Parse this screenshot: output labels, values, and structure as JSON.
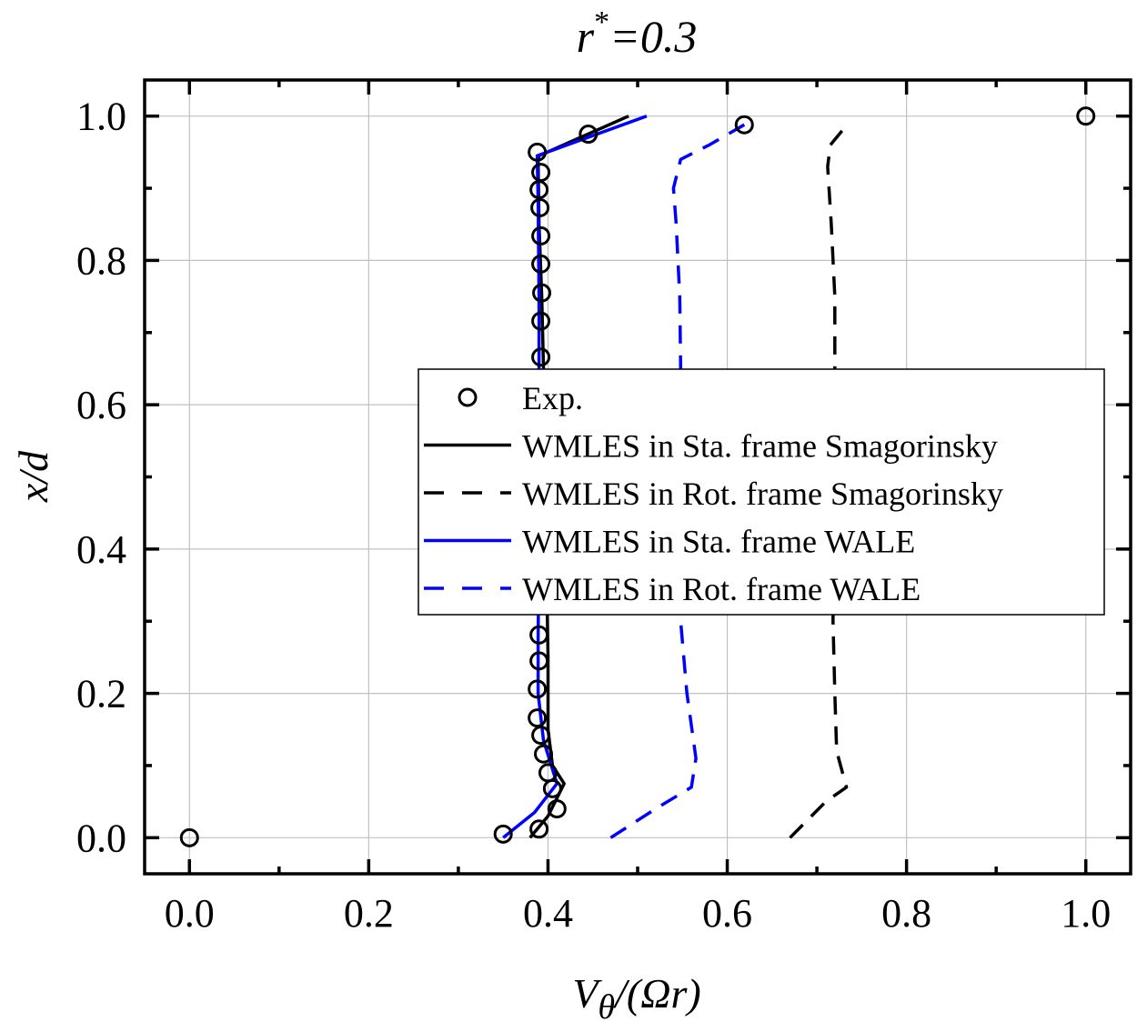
{
  "chart_data": {
    "type": "line",
    "title": "r*=0.3",
    "title_parts": {
      "base": "r",
      "sup": "*",
      "rest": "=0.3"
    },
    "xlabel": "Vθ/(Ωr)",
    "xlabel_parts": {
      "main": "V",
      "sub": "θ",
      "rest": "/(Ωr)"
    },
    "ylabel": "x/d",
    "xlim": [
      -0.05,
      1.05
    ],
    "ylim": [
      -0.05,
      1.05
    ],
    "xticks": [
      0.0,
      0.2,
      0.4,
      0.6,
      0.8,
      1.0
    ],
    "xtick_labels": [
      "0.0",
      "0.2",
      "0.4",
      "0.6",
      "0.8",
      "1.0"
    ],
    "yticks": [
      0.0,
      0.2,
      0.4,
      0.6,
      0.8,
      1.0
    ],
    "ytick_labels": [
      "0.0",
      "0.2",
      "0.4",
      "0.6",
      "0.8",
      "1.0"
    ],
    "minor_xticks": [
      0.1,
      0.3,
      0.5,
      0.7,
      0.9
    ],
    "minor_yticks": [
      0.1,
      0.3,
      0.5,
      0.7,
      0.9
    ],
    "grid": true,
    "legend_placement": "center-right",
    "series": [
      {
        "name": "Exp.",
        "style": "marker",
        "color": "#000000",
        "x": [
          0.0,
          0.35,
          0.39,
          0.41,
          0.405,
          0.4,
          0.395,
          0.392,
          0.388,
          0.388,
          0.39,
          0.39,
          0.392,
          0.392,
          0.393,
          0.392,
          0.392,
          0.391,
          0.39,
          0.392,
          0.388,
          0.445,
          0.619,
          1.0
        ],
        "y": [
          0.0,
          0.005,
          0.012,
          0.04,
          0.068,
          0.09,
          0.116,
          0.142,
          0.166,
          0.206,
          0.245,
          0.281,
          0.666,
          0.716,
          0.755,
          0.795,
          0.834,
          0.873,
          0.898,
          0.922,
          0.95,
          0.975,
          0.988,
          1.0
        ]
      },
      {
        "name": "WMLES in Sta. frame Smagorinsky",
        "style": "solid",
        "color": "#000000",
        "x": [
          0.38,
          0.4,
          0.418,
          0.405,
          0.4,
          0.4,
          0.398,
          0.396,
          0.393,
          0.39,
          0.389,
          0.39,
          0.49
        ],
        "y": [
          0.0,
          0.03,
          0.075,
          0.1,
          0.15,
          0.25,
          0.4,
          0.6,
          0.75,
          0.85,
          0.94,
          0.945,
          1.0
        ]
      },
      {
        "name": "WMLES in Rot. frame Smagorinsky",
        "style": "dashed",
        "color": "#000000",
        "x": [
          0.67,
          0.71,
          0.733,
          0.722,
          0.72,
          0.718,
          0.72,
          0.72,
          0.72,
          0.716,
          0.712,
          0.715,
          0.735
        ],
        "y": [
          0.0,
          0.05,
          0.07,
          0.12,
          0.2,
          0.3,
          0.5,
          0.65,
          0.75,
          0.85,
          0.93,
          0.96,
          0.99
        ]
      },
      {
        "name": "WMLES in Sta. frame WALE",
        "style": "solid",
        "color": "#0000ff",
        "x": [
          0.35,
          0.385,
          0.41,
          0.395,
          0.389,
          0.389,
          0.39,
          0.39,
          0.39,
          0.389,
          0.388,
          0.51
        ],
        "y": [
          0.0,
          0.035,
          0.075,
          0.135,
          0.2,
          0.28,
          0.4,
          0.6,
          0.75,
          0.88,
          0.945,
          1.0
        ]
      },
      {
        "name": "WMLES in Rot. frame WALE",
        "style": "dashed",
        "color": "#0000ff",
        "x": [
          0.47,
          0.52,
          0.56,
          0.565,
          0.555,
          0.548,
          0.548,
          0.548,
          0.547,
          0.543,
          0.54,
          0.548,
          0.58,
          0.619
        ],
        "y": [
          0.0,
          0.04,
          0.07,
          0.11,
          0.2,
          0.3,
          0.5,
          0.65,
          0.75,
          0.85,
          0.9,
          0.94,
          0.96,
          0.988
        ]
      }
    ]
  }
}
